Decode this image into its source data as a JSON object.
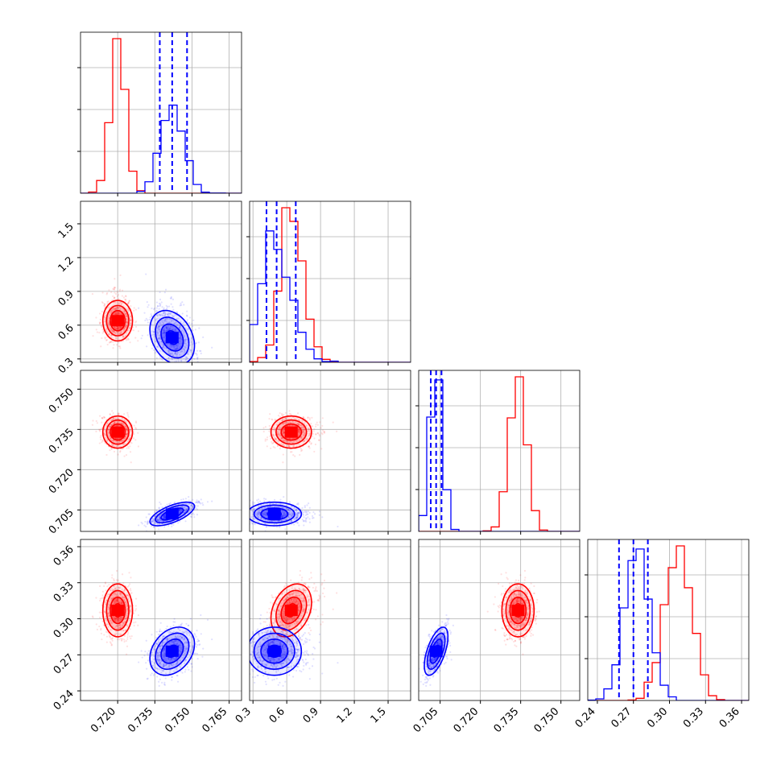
{
  "colors": {
    "series_a": "#ff0000",
    "series_b": "#0000ff",
    "grid": "#b0b0b0",
    "frame": "#000000"
  },
  "chart_data": {
    "type": "corner",
    "grid": true,
    "series": [
      {
        "name": "",
        "color": "#ff0000",
        "means": [
          0.72,
          0.64,
          0.734,
          0.307
        ],
        "sds": [
          0.003,
          0.09,
          0.003,
          0.011
        ],
        "corr": [
          [
            1,
            0,
            0,
            0
          ],
          [
            0,
            1,
            0,
            0.3
          ],
          [
            0,
            0,
            1,
            0
          ],
          [
            0,
            0.3,
            0,
            1
          ]
        ],
        "hist_peaks": [
          1.0,
          1.0,
          1.0,
          1.0
        ]
      },
      {
        "name": "",
        "color": "#0000ff",
        "means": [
          0.742,
          0.49,
          0.7035,
          0.273
        ],
        "sds": [
          0.0045,
          0.12,
          0.0022,
          0.01
        ],
        "corr": [
          [
            1,
            -0.3,
            0.65,
            0.3
          ],
          [
            -0.3,
            1,
            0,
            0
          ],
          [
            0.65,
            0,
            1,
            0.6
          ],
          [
            0.3,
            0,
            0.6,
            1
          ]
        ],
        "hist_peaks": [
          0.57,
          0.85,
          0.98,
          0.98
        ],
        "quantiles": [
          [
            0.737,
            0.742,
            0.748
          ],
          [
            0.42,
            0.51,
            0.68
          ],
          [
            0.7015,
            0.7035,
            0.7055
          ],
          [
            0.258,
            0.27,
            0.282
          ]
        ]
      }
    ],
    "axes": [
      {
        "range": [
          0.705,
          0.77
        ],
        "ticks": [
          "0.720",
          "0.735",
          "0.750",
          "0.765"
        ]
      },
      {
        "range": [
          0.27,
          1.7
        ],
        "ticks": [
          "0.3",
          "0.6",
          "0.9",
          "1.2",
          "1.5"
        ]
      },
      {
        "range": [
          0.697,
          0.757
        ],
        "ticks": [
          "0.705",
          "0.720",
          "0.735",
          "0.750"
        ]
      },
      {
        "range": [
          0.232,
          0.366
        ],
        "ticks": [
          "0.24",
          "0.27",
          "0.30",
          "0.33",
          "0.36"
        ]
      }
    ]
  }
}
